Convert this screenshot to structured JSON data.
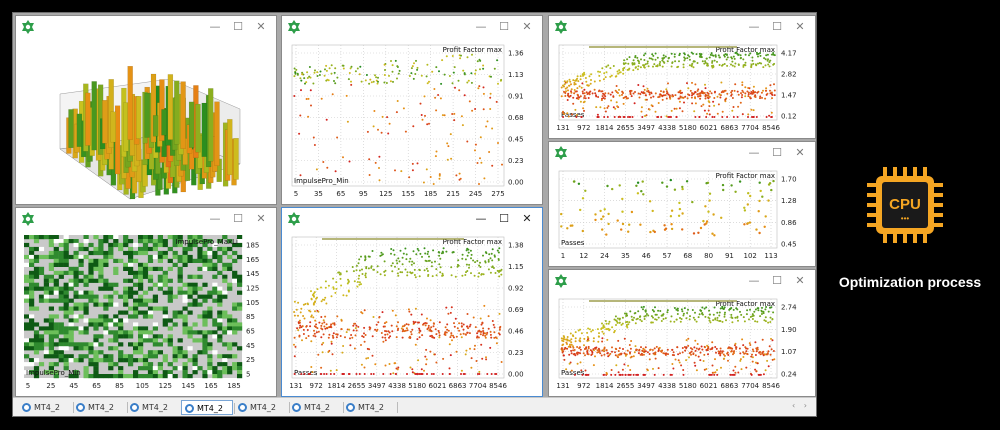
{
  "colors": {
    "accent": "#f5a623",
    "window_border_active": "#4a8ad0",
    "tab_icon": "#3a7ec8",
    "grad_good": "#1f8a1f",
    "grad_mid": "#c9c21f",
    "grad_bad": "#d21f1f"
  },
  "icons": {
    "app": "gear-icon",
    "cpu": "cpu-icon",
    "tab": "chart-icon"
  },
  "window_controls": {
    "minimize": "—",
    "maximize": "☐",
    "close": "✕"
  },
  "sidebar": {
    "cpu_label": "CPU",
    "cpu_dots": "•••",
    "caption": "Optimization process"
  },
  "tabs": [
    {
      "label": "MT4_2"
    },
    {
      "label": "MT4_2"
    },
    {
      "label": "MT4_2"
    },
    {
      "label": "MT4_2",
      "selected": true
    },
    {
      "label": "MT4_2"
    },
    {
      "label": "MT4_2"
    },
    {
      "label": "MT4_2"
    }
  ],
  "tabbar": {
    "scroll": "‹ ›"
  },
  "windows": [
    {
      "id": "w1",
      "type": "3d-bars",
      "active": false
    },
    {
      "id": "w2",
      "type": "scatter",
      "active": false,
      "title": "Profit Factor max",
      "label": "ImpulsePro_Min",
      "xticks": [
        "5",
        "35",
        "65",
        "95",
        "125",
        "155",
        "185",
        "215",
        "245",
        "275"
      ],
      "yticks": [
        "1.36",
        "1.13",
        "0.91",
        "0.68",
        "0.45",
        "0.23",
        "0.00"
      ]
    },
    {
      "id": "w3",
      "type": "scatter",
      "active": false,
      "title": "Profit Factor max",
      "label": "Passes",
      "xticks": [
        "131",
        "972",
        "1814",
        "2655",
        "3497",
        "4338",
        "5180",
        "6021",
        "6863",
        "7704",
        "8546"
      ],
      "yticks": [
        "4.17",
        "2.82",
        "1.47",
        "0.12"
      ]
    },
    {
      "id": "w4",
      "type": "heatmap",
      "active": false,
      "top_label": "ImpulsePro_MaxLi",
      "label": "ImpulsePro_Min",
      "xticks": [
        "5",
        "25",
        "45",
        "65",
        "85",
        "105",
        "125",
        "145",
        "165",
        "185"
      ],
      "yticks": [
        "185",
        "165",
        "145",
        "125",
        "105",
        "85",
        "65",
        "45",
        "25",
        "5"
      ]
    },
    {
      "id": "w5",
      "type": "scatter",
      "active": true,
      "title": "Profit Factor max",
      "label": "Passes",
      "xticks": [
        "131",
        "972",
        "1814",
        "2655",
        "3497",
        "4338",
        "5180",
        "6021",
        "6863",
        "7704",
        "8546"
      ],
      "yticks": [
        "1.38",
        "1.15",
        "0.92",
        "0.69",
        "0.46",
        "0.23",
        "0.00"
      ]
    },
    {
      "id": "w6",
      "type": "scatter",
      "active": false,
      "title": "Profit Factor max",
      "label": "Passes",
      "xticks": [
        "1",
        "12",
        "24",
        "35",
        "46",
        "57",
        "68",
        "80",
        "91",
        "102",
        "113"
      ],
      "yticks": [
        "1.70",
        "1.28",
        "0.86",
        "0.45"
      ]
    },
    {
      "id": "w7",
      "type": "scatter",
      "active": false,
      "title": "Profit Factor max",
      "label": "Passes",
      "xticks": [
        "131",
        "972",
        "1814",
        "2655",
        "3497",
        "4338",
        "5180",
        "6021",
        "6863",
        "7704",
        "8546"
      ],
      "yticks": [
        "2.74",
        "1.90",
        "1.07",
        "0.24"
      ]
    }
  ]
}
